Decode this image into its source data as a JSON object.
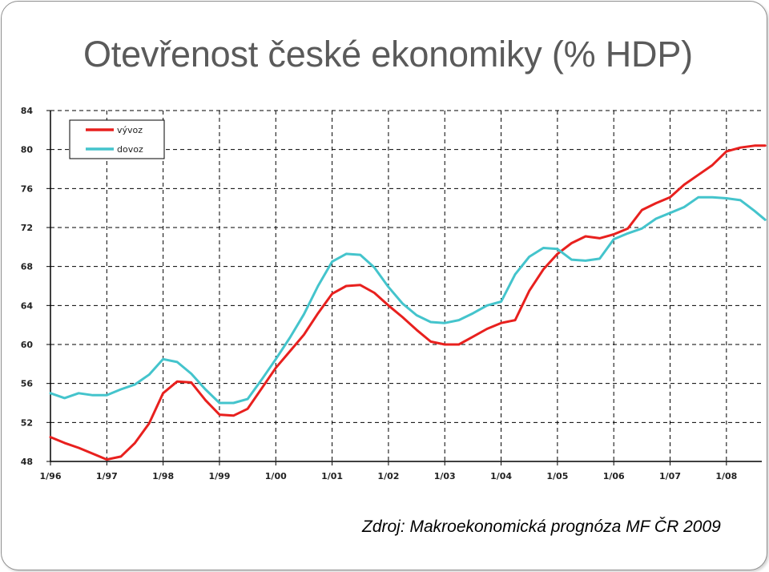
{
  "slide": {
    "title": "Otevřenost české ekonomiky (% HDP)",
    "source": "Zdroj: Makroekonomická prognóza MF ČR 2009"
  },
  "chart_data": {
    "type": "line",
    "title": "",
    "xlabel": "",
    "ylabel": "",
    "x_tick_labels": [
      "1/96",
      "1/97",
      "1/98",
      "1/99",
      "1/00",
      "1/01",
      "1/02",
      "1/03",
      "1/04",
      "1/05",
      "1/06",
      "1/07",
      "1/08"
    ],
    "y_ticks": [
      48,
      52,
      56,
      60,
      64,
      68,
      72,
      76,
      80,
      84
    ],
    "ylim": [
      48,
      84
    ],
    "xlim": [
      0,
      50.75
    ],
    "grid": true,
    "legend_position": "top-left",
    "series": [
      {
        "name": "vývoz",
        "color": "#e8201e",
        "x": [
          0,
          1,
          2,
          3,
          4,
          5,
          6,
          7,
          8,
          9,
          10,
          11,
          12,
          13,
          14,
          15,
          16,
          17,
          18,
          19,
          20,
          21,
          22,
          23,
          24,
          25,
          26,
          27,
          28,
          29,
          30,
          31,
          32,
          33,
          34,
          35,
          36,
          37,
          38,
          39,
          40,
          41,
          42,
          43,
          44,
          45,
          46,
          47,
          48,
          49,
          50,
          50.75
        ],
        "values": [
          50.5,
          49.9,
          49.4,
          48.8,
          48.2,
          48.5,
          49.9,
          51.9,
          55.0,
          56.2,
          56.1,
          54.3,
          52.8,
          52.7,
          53.4,
          55.5,
          57.6,
          59.3,
          61.0,
          63.2,
          65.2,
          66.0,
          66.1,
          65.3,
          64.0,
          62.8,
          61.5,
          60.3,
          60.0,
          60.0,
          60.8,
          61.6,
          62.2,
          62.5,
          65.5,
          67.7,
          69.3,
          70.4,
          71.1,
          70.9,
          71.3,
          71.9,
          73.8,
          74.5,
          75.1,
          76.4,
          77.4,
          78.4,
          79.8,
          80.2,
          80.4,
          80.4
        ]
      },
      {
        "name": "dovoz",
        "color": "#44c4cc",
        "x": [
          0,
          1,
          2,
          3,
          4,
          5,
          6,
          7,
          8,
          9,
          10,
          11,
          12,
          13,
          14,
          15,
          16,
          17,
          18,
          19,
          20,
          21,
          22,
          23,
          24,
          25,
          26,
          27,
          28,
          29,
          30,
          31,
          32,
          33,
          34,
          35,
          36,
          37,
          38,
          39,
          40,
          41,
          42,
          43,
          44,
          45,
          46,
          47,
          48,
          49,
          50,
          50.75
        ],
        "values": [
          55.0,
          54.5,
          55.0,
          54.8,
          54.8,
          55.4,
          55.9,
          56.9,
          58.5,
          58.2,
          57.0,
          55.4,
          54.0,
          54.0,
          54.4,
          56.4,
          58.5,
          60.7,
          63.1,
          66.0,
          68.5,
          69.3,
          69.2,
          67.9,
          65.9,
          64.2,
          63.0,
          62.3,
          62.2,
          62.5,
          63.2,
          64.0,
          64.4,
          67.2,
          69.0,
          69.9,
          69.8,
          68.7,
          68.6,
          68.8,
          70.8,
          71.4,
          71.9,
          72.9,
          73.5,
          74.1,
          75.1,
          75.1,
          75.0,
          74.8,
          73.7,
          72.8
        ]
      }
    ]
  }
}
